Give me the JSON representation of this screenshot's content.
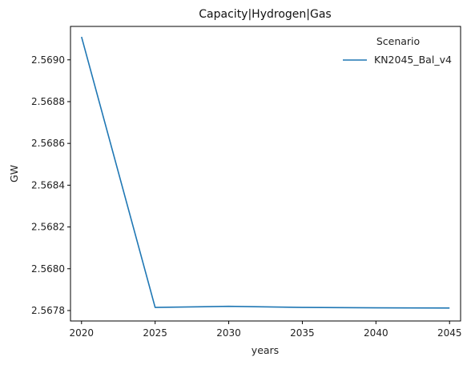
{
  "chart_data": {
    "type": "line",
    "title": "Capacity|Hydrogen|Gas",
    "xlabel": "years",
    "ylabel": "GW",
    "x": [
      2020,
      2025,
      2030,
      2035,
      2040,
      2045
    ],
    "x_ticks": [
      "2020",
      "2025",
      "2030",
      "2035",
      "2040",
      "2045"
    ],
    "y_ticks": [
      "2.5678",
      "2.5680",
      "2.5682",
      "2.5684",
      "2.5686",
      "2.5688",
      "2.5690"
    ],
    "ylim": [
      2.56775,
      2.56916
    ],
    "xlim": [
      2019.25,
      2045.75
    ],
    "grid": false,
    "legend": {
      "title": "Scenario",
      "placement": "top-right"
    },
    "series": [
      {
        "name": "KN2045_Bal_v4",
        "color": "#1f77b4",
        "values": [
          2.56911,
          2.567815,
          2.56782,
          2.567815,
          2.567813,
          2.567812
        ]
      }
    ]
  }
}
